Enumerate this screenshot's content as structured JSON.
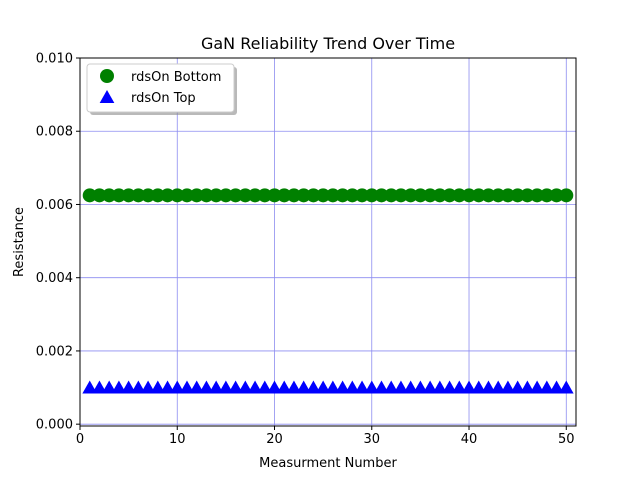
{
  "chart_data": {
    "type": "scatter",
    "title": "GaN Reliability Trend Over Time",
    "xlabel": "Measurment Number",
    "ylabel": "Resistance",
    "xlim": [
      0,
      51
    ],
    "ylim": [
      -5e-05,
      0.01
    ],
    "xticks": [
      0,
      10,
      20,
      30,
      40,
      50
    ],
    "yticks": [
      0.0,
      0.002,
      0.004,
      0.006,
      0.008,
      0.01
    ],
    "ytick_labels": [
      "0.000",
      "0.002",
      "0.004",
      "0.006",
      "0.008",
      "0.010"
    ],
    "grid": true,
    "grid_color": "#8c8cf0",
    "legend_placement": "upper-left",
    "series": [
      {
        "name": "rdsOn Bottom",
        "marker": "circle",
        "color": "#008000",
        "x": [
          1,
          2,
          3,
          4,
          5,
          6,
          7,
          8,
          9,
          10,
          11,
          12,
          13,
          14,
          15,
          16,
          17,
          18,
          19,
          20,
          21,
          22,
          23,
          24,
          25,
          26,
          27,
          28,
          29,
          30,
          31,
          32,
          33,
          34,
          35,
          36,
          37,
          38,
          39,
          40,
          41,
          42,
          43,
          44,
          45,
          46,
          47,
          48,
          49,
          50
        ],
        "y": [
          0.00625,
          0.00625,
          0.00625,
          0.00625,
          0.00625,
          0.00625,
          0.00625,
          0.00625,
          0.00625,
          0.00625,
          0.00625,
          0.00625,
          0.00625,
          0.00625,
          0.00625,
          0.00625,
          0.00625,
          0.00625,
          0.00625,
          0.00625,
          0.00625,
          0.00625,
          0.00625,
          0.00625,
          0.00625,
          0.00625,
          0.00625,
          0.00625,
          0.00625,
          0.00625,
          0.00625,
          0.00625,
          0.00625,
          0.00625,
          0.00625,
          0.00625,
          0.00625,
          0.00625,
          0.00625,
          0.00625,
          0.00625,
          0.00625,
          0.00625,
          0.00625,
          0.00625,
          0.00625,
          0.00625,
          0.00625,
          0.00625,
          0.00625
        ]
      },
      {
        "name": "rdsOn Top",
        "marker": "triangle",
        "color": "#0000ff",
        "x": [
          1,
          2,
          3,
          4,
          5,
          6,
          7,
          8,
          9,
          10,
          11,
          12,
          13,
          14,
          15,
          16,
          17,
          18,
          19,
          20,
          21,
          22,
          23,
          24,
          25,
          26,
          27,
          28,
          29,
          30,
          31,
          32,
          33,
          34,
          35,
          36,
          37,
          38,
          39,
          40,
          41,
          42,
          43,
          44,
          45,
          46,
          47,
          48,
          49,
          50
        ],
        "y": [
          0.001,
          0.001,
          0.001,
          0.001,
          0.001,
          0.001,
          0.001,
          0.001,
          0.001,
          0.001,
          0.001,
          0.001,
          0.001,
          0.001,
          0.001,
          0.001,
          0.001,
          0.001,
          0.001,
          0.001,
          0.001,
          0.001,
          0.001,
          0.001,
          0.001,
          0.001,
          0.001,
          0.001,
          0.001,
          0.001,
          0.001,
          0.001,
          0.001,
          0.001,
          0.001,
          0.001,
          0.001,
          0.001,
          0.001,
          0.001,
          0.001,
          0.001,
          0.001,
          0.001,
          0.001,
          0.001,
          0.001,
          0.001,
          0.001,
          0.001
        ]
      }
    ]
  }
}
